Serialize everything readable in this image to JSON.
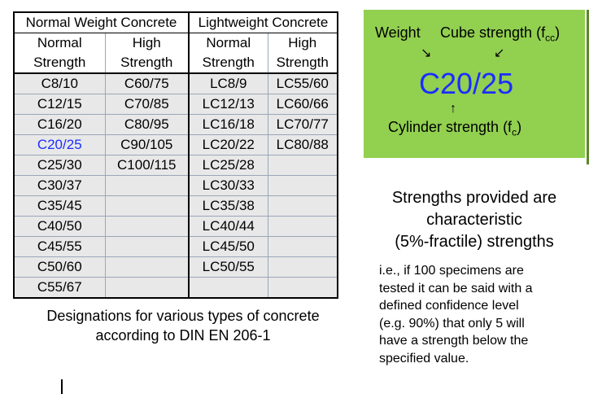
{
  "table": {
    "group_headers": [
      "Normal Weight Concrete",
      "Lightweight Concrete"
    ],
    "sub_headers": [
      [
        "Normal",
        "Strength"
      ],
      [
        "High",
        "Strength"
      ],
      [
        "Normal",
        "Strength"
      ],
      [
        "High",
        "Strength"
      ]
    ],
    "rows": [
      [
        "C8/10",
        "C60/75",
        "LC8/9",
        "LC55/60"
      ],
      [
        "C12/15",
        "C70/85",
        "LC12/13",
        "LC60/66"
      ],
      [
        "C16/20",
        "C80/95",
        "LC16/18",
        "LC70/77"
      ],
      [
        "C20/25",
        "C90/105",
        "LC20/22",
        "LC80/88"
      ],
      [
        "C25/30",
        "C100/115",
        "LC25/28",
        ""
      ],
      [
        "C30/37",
        "",
        "LC30/33",
        ""
      ],
      [
        "C35/45",
        "",
        "LC35/38",
        ""
      ],
      [
        "C40/50",
        "",
        "LC40/44",
        ""
      ],
      [
        "C45/55",
        "",
        "LC45/50",
        ""
      ],
      [
        "C50/60",
        "",
        "LC50/55",
        ""
      ],
      [
        "C55/67",
        "",
        "",
        ""
      ]
    ],
    "highlight_color": "#1a2eff"
  },
  "caption": {
    "line1": "Designations for various types of concrete",
    "line2": "according to DIN EN 206-1"
  },
  "green_box": {
    "background": "#92d050",
    "weight_label": "Weight",
    "cube_label": "Cube strength (f",
    "cube_sub": "cc",
    "cube_close": ")",
    "designation": "C20/25",
    "cylinder_label": "Cylinder strength (f",
    "cylinder_sub": "c",
    "cylinder_close": ")"
  },
  "note": {
    "title_line1": "Strengths provided are",
    "title_line2": "characteristic",
    "title_line3": "(5%-fractile) strengths",
    "line1": "i.e., if 100 specimens are",
    "line2": "tested it can be said with a",
    "line3": "defined confidence level",
    "line4": "(e.g. 90%) that only 5 will",
    "line5": "have a strength below the",
    "line6": "specified value."
  }
}
